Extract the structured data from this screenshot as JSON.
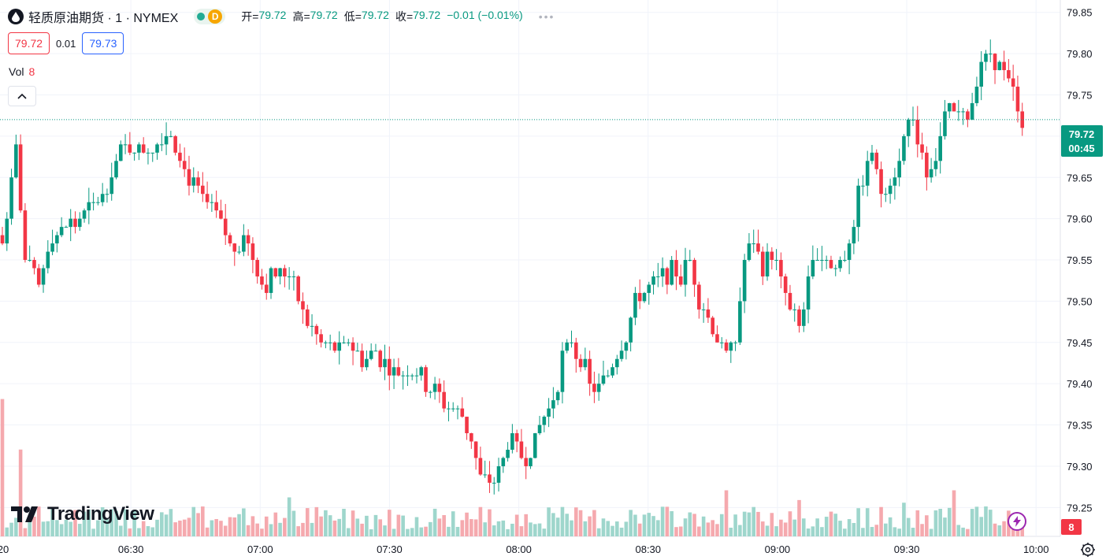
{
  "header": {
    "title": "轻质原油期货 · 1 · NYMEX",
    "delay_badge": "D",
    "ohlc": [
      {
        "label": "开=",
        "value": "79.72"
      },
      {
        "label": "高=",
        "value": "79.72"
      },
      {
        "label": "低=",
        "value": "79.72"
      },
      {
        "label": "收=",
        "value": "79.72"
      }
    ],
    "change": "−0.01 (−0.01%)",
    "more": "•••"
  },
  "quotes": {
    "bid": "79.72",
    "spread": "0.01",
    "ask": "79.73"
  },
  "volume_legend": {
    "label": "Vol",
    "value": "8"
  },
  "logo_text": "TradingView",
  "colors": {
    "up": "#089981",
    "down": "#f23645",
    "vol_up": "#9ed6cc",
    "vol_down": "#f5a9ae",
    "grid": "#f0f3fa"
  },
  "price_tag": {
    "price": "79.72",
    "countdown": "00:45"
  },
  "volume_tag": "8",
  "chart_data": {
    "type": "candlestick",
    "title": "轻质原油期货 · 1 · NYMEX",
    "x_ticks": [
      "20",
      "06:30",
      "07:00",
      "07:30",
      "08:00",
      "08:30",
      "09:00",
      "09:30",
      "10:00"
    ],
    "y_ticks": [
      79.25,
      79.3,
      79.35,
      79.4,
      79.45,
      79.5,
      79.55,
      79.6,
      79.65,
      79.7,
      79.75,
      79.8,
      79.85
    ],
    "ylim": [
      79.215,
      79.865
    ],
    "last_price": 79.72,
    "candle_interval": "1 min",
    "grid": true,
    "close_path": [
      [
        0,
        79.57
      ],
      [
        3,
        79.68
      ],
      [
        5,
        79.55
      ],
      [
        8,
        79.52
      ],
      [
        10,
        79.57
      ],
      [
        14,
        79.59
      ],
      [
        18,
        79.6
      ],
      [
        22,
        79.63
      ],
      [
        25,
        79.67
      ],
      [
        28,
        79.69
      ],
      [
        30,
        79.68
      ],
      [
        33,
        79.69
      ],
      [
        37,
        79.71
      ],
      [
        40,
        79.66
      ],
      [
        43,
        79.63
      ],
      [
        46,
        79.61
      ],
      [
        49,
        79.58
      ],
      [
        51,
        79.56
      ],
      [
        53,
        79.59
      ],
      [
        55,
        79.55
      ],
      [
        57,
        79.52
      ],
      [
        60,
        79.53
      ],
      [
        63,
        79.54
      ],
      [
        65,
        79.5
      ],
      [
        67,
        79.47
      ],
      [
        70,
        79.45
      ],
      [
        73,
        79.44
      ],
      [
        76,
        79.45
      ],
      [
        79,
        79.43
      ],
      [
        82,
        79.44
      ],
      [
        85,
        79.42
      ],
      [
        88,
        79.41
      ],
      [
        90,
        79.42
      ],
      [
        93,
        79.4
      ],
      [
        95,
        79.39
      ],
      [
        97,
        79.38
      ],
      [
        99,
        79.37
      ],
      [
        101,
        79.36
      ],
      [
        103,
        79.33
      ],
      [
        105,
        79.29
      ],
      [
        107,
        79.28
      ],
      [
        109,
        79.29
      ],
      [
        111,
        79.33
      ],
      [
        113,
        79.32
      ],
      [
        115,
        79.31
      ],
      [
        117,
        79.33
      ],
      [
        119,
        79.36
      ],
      [
        121,
        79.38
      ],
      [
        123,
        79.43
      ],
      [
        125,
        79.45
      ],
      [
        127,
        79.43
      ],
      [
        129,
        79.4
      ],
      [
        131,
        79.39
      ],
      [
        133,
        79.41
      ],
      [
        135,
        79.44
      ],
      [
        137,
        79.46
      ],
      [
        139,
        79.5
      ],
      [
        141,
        79.51
      ],
      [
        143,
        79.52
      ],
      [
        145,
        79.53
      ],
      [
        147,
        79.54
      ],
      [
        149,
        79.53
      ],
      [
        151,
        79.55
      ],
      [
        153,
        79.5
      ],
      [
        155,
        79.48
      ],
      [
        157,
        79.46
      ],
      [
        159,
        79.43
      ],
      [
        161,
        79.45
      ],
      [
        163,
        79.55
      ],
      [
        165,
        79.57
      ],
      [
        167,
        79.54
      ],
      [
        169,
        79.56
      ],
      [
        171,
        79.52
      ],
      [
        173,
        79.49
      ],
      [
        175,
        79.47
      ],
      [
        177,
        79.52
      ],
      [
        179,
        79.56
      ],
      [
        181,
        79.55
      ],
      [
        183,
        79.54
      ],
      [
        185,
        79.56
      ],
      [
        187,
        79.6
      ],
      [
        189,
        79.65
      ],
      [
        191,
        79.68
      ],
      [
        193,
        79.63
      ],
      [
        195,
        79.65
      ],
      [
        197,
        79.67
      ],
      [
        199,
        79.72
      ],
      [
        201,
        79.7
      ],
      [
        203,
        79.66
      ],
      [
        205,
        79.68
      ],
      [
        207,
        79.72
      ],
      [
        209,
        79.73
      ],
      [
        211,
        79.72
      ],
      [
        213,
        79.74
      ],
      [
        215,
        79.79
      ],
      [
        217,
        79.8
      ],
      [
        219,
        79.78
      ],
      [
        221,
        79.76
      ],
      [
        223,
        79.74
      ],
      [
        224,
        79.72
      ]
    ],
    "volume_ylim": [
      0,
      160
    ],
    "volume_highlights": [
      [
        0,
        155
      ],
      [
        4,
        98
      ],
      [
        63,
        44
      ],
      [
        159,
        52
      ],
      [
        175,
        41
      ],
      [
        198,
        38
      ],
      [
        209,
        52
      ],
      [
        222,
        15
      ]
    ]
  }
}
